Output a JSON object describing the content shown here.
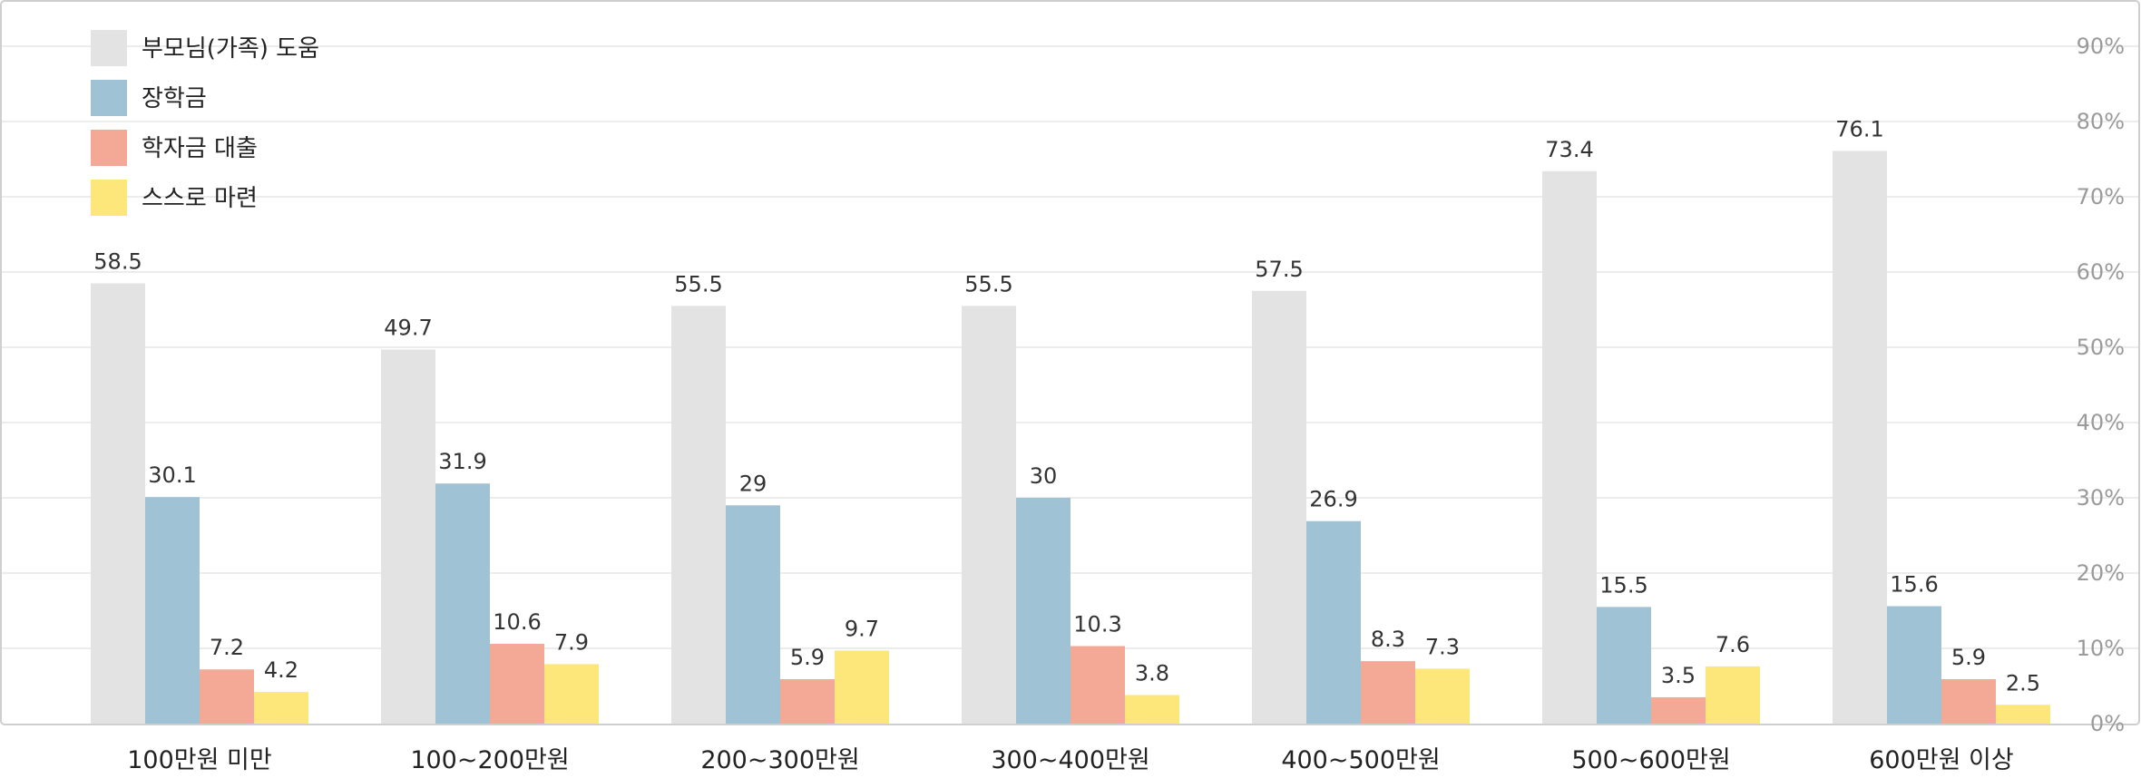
{
  "chart_data": {
    "type": "bar",
    "title": "",
    "xlabel": "",
    "ylabel": "",
    "ylim": [
      0,
      90
    ],
    "y_ticks": [
      "0%",
      "10%",
      "20%",
      "30%",
      "40%",
      "50%",
      "60%",
      "70%",
      "80%",
      "90%"
    ],
    "y_axis_position": "right",
    "grid": true,
    "legend_position": "top-left",
    "categories": [
      "100만원 미만",
      "100~200만원",
      "200~300만원",
      "300~400만원",
      "400~500만원",
      "500~600만원",
      "600만원 이상"
    ],
    "series": [
      {
        "name": "부모님(가족) 도움",
        "color": "#e3e3e3",
        "values": [
          58.5,
          49.7,
          55.5,
          55.5,
          57.5,
          73.4,
          76.1
        ]
      },
      {
        "name": "장학금",
        "color": "#9fc2d5",
        "values": [
          30.1,
          31.9,
          29,
          30,
          26.9,
          15.5,
          15.6
        ]
      },
      {
        "name": "학자금 대출",
        "color": "#f4a996",
        "values": [
          7.2,
          10.6,
          5.9,
          10.3,
          8.3,
          3.5,
          5.9
        ]
      },
      {
        "name": "스스로 마련",
        "color": "#fde67a",
        "values": [
          4.2,
          7.9,
          9.7,
          3.8,
          7.3,
          7.6,
          2.5
        ]
      }
    ]
  }
}
